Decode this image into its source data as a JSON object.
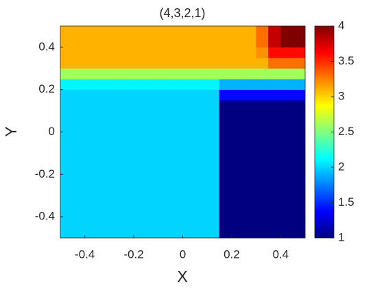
{
  "chart_data": {
    "type": "heatmap",
    "title": "(4,3,2,1)",
    "x_label": "X",
    "y_label": "Y",
    "colormap": "jet",
    "clim": [
      1,
      4
    ],
    "colorbar_ticks": [
      1,
      1.5,
      2,
      2.5,
      3,
      3.5,
      4
    ],
    "xlim": [
      -0.5,
      0.5
    ],
    "ylim": [
      -0.5,
      0.5
    ],
    "xticks": [
      -0.4,
      -0.2,
      0,
      0.2,
      0.4
    ],
    "yticks": [
      -0.4,
      -0.2,
      0,
      0.2,
      0.4
    ],
    "x": [
      -0.475,
      -0.425,
      -0.375,
      -0.325,
      -0.275,
      -0.225,
      -0.175,
      -0.125,
      -0.075,
      -0.025,
      0.025,
      0.075,
      0.125,
      0.175,
      0.225,
      0.275,
      0.325,
      0.375,
      0.425,
      0.475
    ],
    "y": [
      -0.475,
      -0.425,
      -0.375,
      -0.325,
      -0.275,
      -0.225,
      -0.175,
      -0.125,
      -0.075,
      -0.025,
      0.025,
      0.075,
      0.125,
      0.175,
      0.225,
      0.275,
      0.325,
      0.375,
      0.425,
      0.475
    ],
    "z": [
      [
        2,
        2,
        2,
        2,
        2,
        2,
        2,
        2,
        2,
        2,
        2,
        2,
        2,
        1,
        1,
        1,
        1,
        1,
        1,
        1
      ],
      [
        2,
        2,
        2,
        2,
        2,
        2,
        2,
        2,
        2,
        2,
        2,
        2,
        2,
        1,
        1,
        1,
        1,
        1,
        1,
        1
      ],
      [
        2,
        2,
        2,
        2,
        2,
        2,
        2,
        2,
        2,
        2,
        2,
        2,
        2,
        1,
        1,
        1,
        1,
        1,
        1,
        1
      ],
      [
        2,
        2,
        2,
        2,
        2,
        2,
        2,
        2,
        2,
        2,
        2,
        2,
        2,
        1,
        1,
        1,
        1,
        1,
        1,
        1
      ],
      [
        2,
        2,
        2,
        2,
        2,
        2,
        2,
        2,
        2,
        2,
        2,
        2,
        2,
        1,
        1,
        1,
        1,
        1,
        1,
        1
      ],
      [
        2,
        2,
        2,
        2,
        2,
        2,
        2,
        2,
        2,
        2,
        2,
        2,
        2,
        1,
        1,
        1,
        1,
        1,
        1,
        1
      ],
      [
        2,
        2,
        2,
        2,
        2,
        2,
        2,
        2,
        2,
        2,
        2,
        2,
        2,
        1,
        1,
        1,
        1,
        1,
        1,
        1
      ],
      [
        2,
        2,
        2,
        2,
        2,
        2,
        2,
        2,
        2,
        2,
        2,
        2,
        2,
        1,
        1,
        1,
        1,
        1,
        1,
        1
      ],
      [
        2,
        2,
        2,
        2,
        2,
        2,
        2,
        2,
        2,
        2,
        2,
        2,
        2,
        1,
        1,
        1,
        1,
        1,
        1,
        1
      ],
      [
        2,
        2,
        2,
        2,
        2,
        2,
        2,
        2,
        2,
        2,
        2,
        2,
        2,
        1,
        1,
        1,
        1,
        1,
        1,
        1
      ],
      [
        2,
        2,
        2,
        2,
        2,
        2,
        2,
        2,
        2,
        2,
        2,
        2,
        2,
        1,
        1,
        1,
        1,
        1,
        1,
        1
      ],
      [
        2,
        2,
        2,
        2,
        2,
        2,
        2,
        2,
        2,
        2,
        2,
        2,
        2,
        1,
        1,
        1,
        1,
        1,
        1,
        1
      ],
      [
        2,
        2,
        2,
        2,
        2,
        2,
        2,
        2,
        2,
        2,
        2,
        2,
        2,
        1,
        1,
        1,
        1,
        1,
        1,
        1
      ],
      [
        2,
        2,
        2,
        2,
        2,
        2,
        2,
        2,
        2,
        2,
        2,
        2,
        2,
        1.4,
        1.4,
        1.4,
        1.4,
        1.4,
        1.4,
        1.4
      ],
      [
        2.1,
        2.1,
        2.1,
        2.1,
        2.1,
        2.1,
        2.1,
        2.1,
        2.1,
        2.1,
        2.1,
        2.1,
        2.1,
        1.9,
        1.9,
        1.9,
        1.9,
        1.9,
        1.9,
        1.9
      ],
      [
        2.6,
        2.6,
        2.6,
        2.6,
        2.6,
        2.6,
        2.6,
        2.6,
        2.6,
        2.6,
        2.6,
        2.6,
        2.6,
        2.6,
        2.6,
        2.6,
        2.6,
        2.6,
        2.6,
        2.6
      ],
      [
        3.1,
        3.1,
        3.1,
        3.1,
        3.1,
        3.1,
        3.1,
        3.1,
        3.1,
        3.1,
        3.1,
        3.1,
        3.1,
        3.1,
        3.1,
        3.1,
        3.1,
        3.3,
        3.3,
        3.3
      ],
      [
        3.1,
        3.1,
        3.1,
        3.1,
        3.1,
        3.1,
        3.1,
        3.1,
        3.1,
        3.1,
        3.1,
        3.1,
        3.1,
        3.1,
        3.1,
        3.1,
        3.2,
        3.6,
        3.6,
        3.6
      ],
      [
        3.1,
        3.1,
        3.1,
        3.1,
        3.1,
        3.1,
        3.1,
        3.1,
        3.1,
        3.1,
        3.1,
        3.1,
        3.1,
        3.1,
        3.1,
        3.1,
        3.3,
        3.8,
        4,
        4
      ],
      [
        3.1,
        3.1,
        3.1,
        3.1,
        3.1,
        3.1,
        3.1,
        3.1,
        3.1,
        3.1,
        3.1,
        3.1,
        3.1,
        3.1,
        3.1,
        3.1,
        3.3,
        3.8,
        4,
        4
      ]
    ]
  }
}
